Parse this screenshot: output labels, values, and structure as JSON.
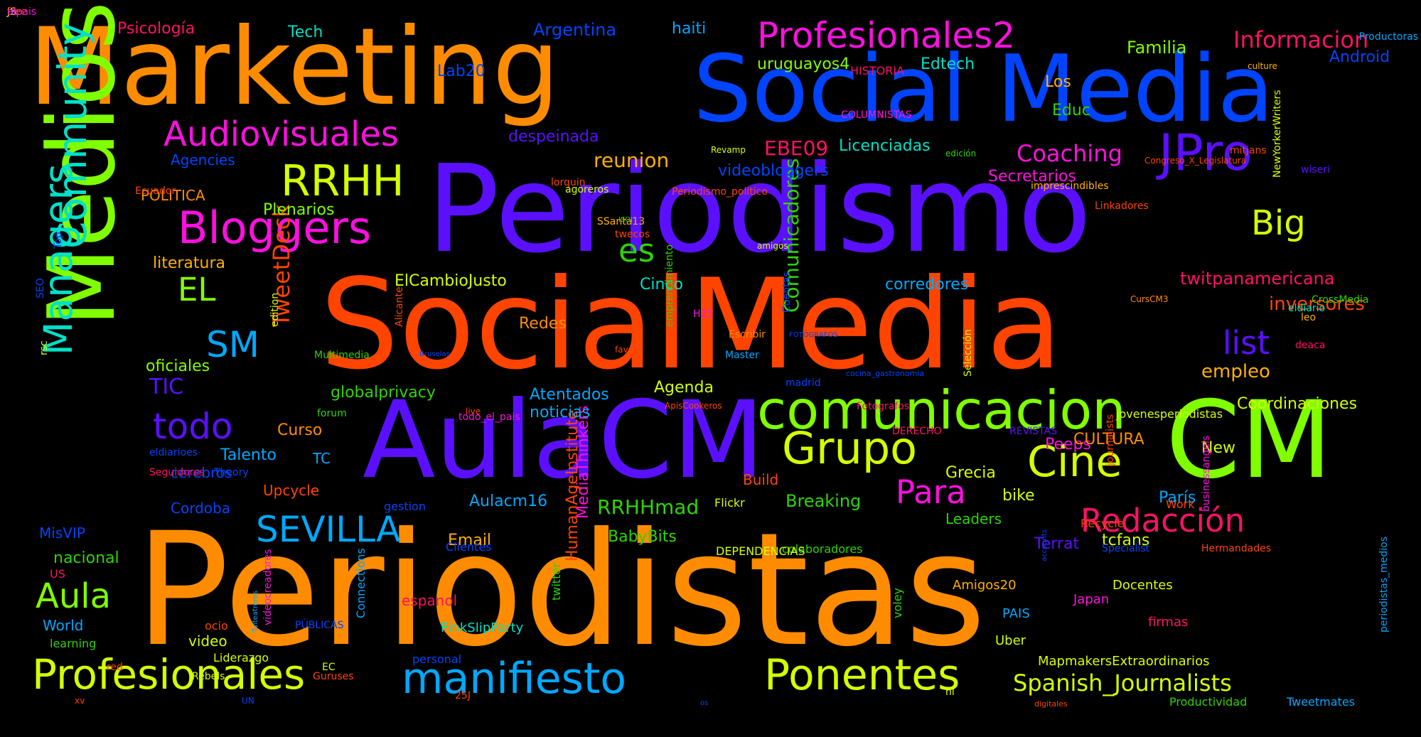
{
  "palette": [
    "#ff8c00",
    "#0044ff",
    "#5a10ff",
    "#ff4400",
    "#80ff00",
    "#ff10e0",
    "#d4ff00",
    "#00e0c8",
    "#ff1068",
    "#00a8ff",
    "#ffb000",
    "#2ed400"
  ],
  "words": [
    {
      "t": "Periodistas",
      "c": 0,
      "s": 10,
      "r": 0
    },
    {
      "t": "SocialMedia",
      "c": 3,
      "s": 9,
      "r": 0
    },
    {
      "t": "Periodismo",
      "c": 2,
      "s": 9,
      "r": 0
    },
    {
      "t": "Marketing",
      "c": 0,
      "s": 8,
      "r": 0
    },
    {
      "t": "Social Media",
      "c": 1,
      "s": 8,
      "r": 0
    },
    {
      "t": "Medios",
      "c": 4,
      "s": 8,
      "r": 1
    },
    {
      "t": "AulaCM",
      "c": 2,
      "s": 8,
      "r": 0
    },
    {
      "t": "CM",
      "c": 4,
      "s": 8,
      "r": 0
    },
    {
      "t": "comunicacion",
      "c": 4,
      "s": 6,
      "r": 0
    },
    {
      "t": "Community",
      "c": 7,
      "s": 5,
      "r": 1
    },
    {
      "t": "Managers",
      "c": 7,
      "s": 5,
      "r": 1
    },
    {
      "t": "JPro",
      "c": 2,
      "s": 5,
      "r": 0
    },
    {
      "t": "Grupo",
      "c": 6,
      "s": 5,
      "r": 0
    },
    {
      "t": "Cine",
      "c": 6,
      "s": 5,
      "r": 0
    },
    {
      "t": "Ponentes",
      "c": 6,
      "s": 5,
      "r": 0
    },
    {
      "t": "manifiesto",
      "c": 9,
      "s": 5,
      "r": 0
    },
    {
      "t": "Profesionales",
      "c": 6,
      "s": 5,
      "r": 0
    },
    {
      "t": "Bloggers",
      "c": 5,
      "s": 5,
      "r": 0
    },
    {
      "t": "RRHH",
      "c": 6,
      "s": 5,
      "r": 0
    },
    {
      "t": "Audiovisuales",
      "c": 5,
      "s": 4,
      "r": 0
    },
    {
      "t": "Profesionales2",
      "c": 5,
      "s": 4,
      "r": 0
    },
    {
      "t": "SEVILLA",
      "c": 9,
      "s": 4,
      "r": 0
    },
    {
      "t": "Redacción",
      "c": 8,
      "s": 4,
      "r": 0
    },
    {
      "t": "todo",
      "c": 2,
      "s": 4,
      "r": 0
    },
    {
      "t": "Aula",
      "c": 4,
      "s": 4,
      "r": 0
    },
    {
      "t": "Big",
      "c": 6,
      "s": 4,
      "r": 0
    },
    {
      "t": "Para",
      "c": 5,
      "s": 4,
      "r": 0
    },
    {
      "t": "es",
      "c": 11,
      "s": 4,
      "r": 0
    },
    {
      "t": "EL",
      "c": 4,
      "s": 4,
      "r": 0
    },
    {
      "t": "SM",
      "c": 9,
      "s": 4,
      "r": 0
    },
    {
      "t": "list",
      "c": 2,
      "s": 4,
      "r": 0
    },
    {
      "t": "TweetDeck",
      "c": 3,
      "s": 3,
      "r": 1
    },
    {
      "t": "Informacion",
      "c": 8,
      "s": 3,
      "r": 0
    },
    {
      "t": "Coaching",
      "c": 5,
      "s": 3,
      "r": 0
    },
    {
      "t": "Spanish_Journalists",
      "c": 6,
      "s": 3,
      "r": 0
    },
    {
      "t": "Comunicadores",
      "c": 11,
      "s": 3,
      "r": 1
    },
    {
      "t": "MediaThinkers",
      "c": 5,
      "s": 3,
      "r": 1
    },
    {
      "t": "HumanAgeInstitute",
      "c": 3,
      "s": 3,
      "r": 1
    },
    {
      "t": "RRHHmad",
      "c": 11,
      "s": 3,
      "r": 0
    },
    {
      "t": "EBE09",
      "c": 8,
      "s": 3,
      "r": 0
    },
    {
      "t": "TIC",
      "c": 2,
      "s": 3,
      "r": 0
    },
    {
      "t": "Breaking",
      "c": 11,
      "s": 2,
      "r": 0
    },
    {
      "t": "reunion",
      "c": 10,
      "s": 3,
      "r": 0
    },
    {
      "t": "empleo",
      "c": 10,
      "s": 3,
      "r": 0
    },
    {
      "t": "inversores",
      "c": 3,
      "s": 3,
      "r": 0
    },
    {
      "t": "twitpanamericana",
      "c": 8,
      "s": 2,
      "r": 0
    },
    {
      "t": "Licenciadas",
      "c": 7,
      "s": 2,
      "r": 0
    },
    {
      "t": "despeinada",
      "c": 2,
      "s": 2,
      "r": 0
    },
    {
      "t": "videobloggers",
      "c": 1,
      "s": 2,
      "r": 0
    },
    {
      "t": "Secretarios",
      "c": 5,
      "s": 2,
      "r": 0
    },
    {
      "t": "Familia",
      "c": 4,
      "s": 2,
      "r": 0
    },
    {
      "t": "uruguayos4",
      "c": 4,
      "s": 2,
      "r": 0
    },
    {
      "t": "Edtech",
      "c": 7,
      "s": 2,
      "r": 0
    },
    {
      "t": "Los",
      "c": 10,
      "s": 2,
      "r": 0
    },
    {
      "t": "Educ",
      "c": 11,
      "s": 2,
      "r": 0
    },
    {
      "t": "Argentina",
      "c": 1,
      "s": 2,
      "r": 0
    },
    {
      "t": "haiti",
      "c": 9,
      "s": 2,
      "r": 0
    },
    {
      "t": "Tech",
      "c": 7,
      "s": 2,
      "r": 0
    },
    {
      "t": "Psicología",
      "c": 8,
      "s": 2,
      "r": 0
    },
    {
      "t": "Android",
      "c": 1,
      "s": 2,
      "r": 0
    },
    {
      "t": "Lab20",
      "c": 1,
      "s": 2,
      "r": 0
    },
    {
      "t": "Agencies",
      "c": 1,
      "s": 2,
      "r": 0
    },
    {
      "t": "POLITICA",
      "c": 0,
      "s": 2,
      "r": 0
    },
    {
      "t": "Plenarios",
      "c": 4,
      "s": 2,
      "r": 0
    },
    {
      "t": "literatura",
      "c": 10,
      "s": 2,
      "r": 0
    },
    {
      "t": "ElCambioJusto",
      "c": 6,
      "s": 2,
      "r": 0
    },
    {
      "t": "Cinco",
      "c": 7,
      "s": 2,
      "r": 0
    },
    {
      "t": "corredores",
      "c": 9,
      "s": 2,
      "r": 0
    },
    {
      "t": "Redes",
      "c": 0,
      "s": 2,
      "r": 0
    },
    {
      "t": "oficiales",
      "c": 4,
      "s": 2,
      "r": 0
    },
    {
      "t": "globalprivacy",
      "c": 11,
      "s": 2,
      "r": 0
    },
    {
      "t": "Atentados",
      "c": 9,
      "s": 2,
      "r": 0
    },
    {
      "t": "noticias",
      "c": 9,
      "s": 2,
      "r": 0
    },
    {
      "t": "Agenda",
      "c": 6,
      "s": 2,
      "r": 0
    },
    {
      "t": "Coordinaciones",
      "c": 6,
      "s": 2,
      "r": 0
    },
    {
      "t": "Curso",
      "c": 0,
      "s": 2,
      "r": 0
    },
    {
      "t": "Talento",
      "c": 9,
      "s": 2,
      "r": 0
    },
    {
      "t": "TC",
      "c": 9,
      "s": 2,
      "r": 0
    },
    {
      "t": "cerebros",
      "c": 1,
      "s": 2,
      "r": 0
    },
    {
      "t": "Upcycle",
      "c": 3,
      "s": 2,
      "r": 0
    },
    {
      "t": "Cordoba",
      "c": 1,
      "s": 2,
      "r": 0
    },
    {
      "t": "Build",
      "c": 3,
      "s": 2,
      "r": 0
    },
    {
      "t": "Peeps",
      "c": 5,
      "s": 2,
      "r": 0
    },
    {
      "t": "Grecia",
      "c": 6,
      "s": 2,
      "r": 0
    },
    {
      "t": "CULTURA",
      "c": 0,
      "s": 2,
      "r": 0
    },
    {
      "t": "bike",
      "c": 6,
      "s": 2,
      "r": 0
    },
    {
      "t": "París",
      "c": 9,
      "s": 2,
      "r": 0
    },
    {
      "t": "New",
      "c": 6,
      "s": 2,
      "r": 0
    },
    {
      "t": "Leaders",
      "c": 11,
      "s": 2,
      "r": 0
    },
    {
      "t": "tcfans",
      "c": 6,
      "s": 2,
      "r": 0
    },
    {
      "t": "Terrat",
      "c": 2,
      "s": 2,
      "r": 0
    },
    {
      "t": "BabyBits",
      "c": 11,
      "s": 2,
      "r": 0
    },
    {
      "t": "Email",
      "c": 10,
      "s": 2,
      "r": 0
    },
    {
      "t": "Aulacm16",
      "c": 9,
      "s": 2,
      "r": 0
    },
    {
      "t": "MisVIP",
      "c": 1,
      "s": 2,
      "r": 0
    },
    {
      "t": "nacional",
      "c": 11,
      "s": 2,
      "r": 0
    },
    {
      "t": "World",
      "c": 9,
      "s": 2,
      "r": 0
    },
    {
      "t": "video",
      "c": 6,
      "s": 2,
      "r": 0
    },
    {
      "t": "espanol",
      "c": 8,
      "s": 2,
      "r": 0
    },
    {
      "t": "Docentes",
      "c": 6,
      "s": 1,
      "r": 0
    },
    {
      "t": "Amigos20",
      "c": 10,
      "s": 1,
      "r": 0
    },
    {
      "t": "Japan",
      "c": 5,
      "s": 1,
      "r": 0
    },
    {
      "t": "PAIS",
      "c": 9,
      "s": 1,
      "r": 0
    },
    {
      "t": "firmas",
      "c": 8,
      "s": 1,
      "r": 0
    },
    {
      "t": "Uber",
      "c": 6,
      "s": 1,
      "r": 0
    },
    {
      "t": "MapmakersExtraordinarios",
      "c": 6,
      "s": 1,
      "r": 0
    },
    {
      "t": "Productividad",
      "c": 11,
      "s": 1,
      "r": 0
    },
    {
      "t": "Tweetmates",
      "c": 9,
      "s": 1,
      "r": 0
    },
    {
      "t": "PinkSlipParty",
      "c": 7,
      "s": 1,
      "r": 0
    },
    {
      "t": "Liderazgo",
      "c": 6,
      "s": 1,
      "r": 0
    },
    {
      "t": "learning",
      "c": 11,
      "s": 1,
      "r": 0
    },
    {
      "t": "personal",
      "c": 1,
      "s": 1,
      "r": 0
    },
    {
      "t": "ocio",
      "c": 3,
      "s": 1,
      "r": 0
    },
    {
      "t": "PÚBLICAS",
      "c": 1,
      "s": 1,
      "r": 0
    },
    {
      "t": "EC",
      "c": 6,
      "s": 1,
      "r": 0
    },
    {
      "t": "red",
      "c": 3,
      "s": 1,
      "r": 0
    },
    {
      "t": "US",
      "c": 8,
      "s": 1,
      "r": 0
    },
    {
      "t": "Clientes",
      "c": 1,
      "s": 1,
      "r": 0
    },
    {
      "t": "colaboradores",
      "c": 11,
      "s": 1,
      "r": 0
    },
    {
      "t": "Specialist",
      "c": 1,
      "s": 1,
      "r": 0
    },
    {
      "t": "Hermandades",
      "c": 3,
      "s": 1,
      "r": 0
    },
    {
      "t": "DEPENDENCIAS",
      "c": 6,
      "s": 1,
      "r": 0
    },
    {
      "t": "Recycle",
      "c": 3,
      "s": 1,
      "r": 0
    },
    {
      "t": "Work",
      "c": 3,
      "s": 1,
      "r": 0
    },
    {
      "t": "Flickr",
      "c": 6,
      "s": 1,
      "r": 0
    },
    {
      "t": "gestion",
      "c": 1,
      "s": 1,
      "r": 0
    },
    {
      "t": "Seguidores",
      "c": 8,
      "s": 1,
      "r": 0
    },
    {
      "t": "Theory",
      "c": 1,
      "s": 1,
      "r": 0
    },
    {
      "t": "eldiarioes",
      "c": 1,
      "s": 1,
      "r": 0
    },
    {
      "t": "DERECHO",
      "c": 8,
      "s": 1,
      "r": 0
    },
    {
      "t": "REVISTAS",
      "c": 2,
      "s": 1,
      "r": 0
    },
    {
      "t": "todo_el_pais",
      "c": 5,
      "s": 1,
      "r": 0
    },
    {
      "t": "forum",
      "c": 11,
      "s": 1,
      "r": 0
    },
    {
      "t": "live",
      "c": 3,
      "s": 1,
      "r": 0
    },
    {
      "t": "madrid",
      "c": 1,
      "s": 1,
      "r": 0
    },
    {
      "t": "Multimedia",
      "c": 11,
      "s": 1,
      "r": 0
    },
    {
      "t": "Master",
      "c": 9,
      "s": 1,
      "r": 0
    },
    {
      "t": "ApisCookeros",
      "c": 3,
      "s": 1,
      "r": 0
    },
    {
      "t": "Fotografos",
      "c": 8,
      "s": 1,
      "r": 0
    },
    {
      "t": "Escribir",
      "c": 0,
      "s": 1,
      "r": 0
    },
    {
      "t": "favs",
      "c": 3,
      "s": 1,
      "r": 0
    },
    {
      "t": "eldiario",
      "c": 7,
      "s": 1,
      "r": 0
    },
    {
      "t": "leo",
      "c": 10,
      "s": 1,
      "r": 0
    },
    {
      "t": "deaca",
      "c": 8,
      "s": 1,
      "r": 0
    },
    {
      "t": "CrossMedia",
      "c": 11,
      "s": 1,
      "r": 0
    },
    {
      "t": "amigos",
      "c": 6,
      "s": 1,
      "r": 0
    },
    {
      "t": "H25",
      "c": 5,
      "s": 1,
      "r": 0
    },
    {
      "t": "SSanta13",
      "c": 10,
      "s": 1,
      "r": 0
    },
    {
      "t": "twecos",
      "c": 3,
      "s": 1,
      "r": 0
    },
    {
      "t": "ISOJ",
      "c": 11,
      "s": 1,
      "r": 0
    },
    {
      "t": "CursCM3",
      "c": 0,
      "s": 1,
      "r": 0
    },
    {
      "t": "Linkadores",
      "c": 3,
      "s": 1,
      "r": 0
    },
    {
      "t": "lorquin",
      "c": 3,
      "s": 1,
      "r": 0
    },
    {
      "t": "Ecuador",
      "c": 3,
      "s": 1,
      "r": 0
    },
    {
      "t": "Periodismo_politico",
      "c": 3,
      "s": 1,
      "r": 0
    },
    {
      "t": "imprescindibles",
      "c": 10,
      "s": 1,
      "r": 0
    },
    {
      "t": "edición",
      "c": 11,
      "s": 1,
      "r": 0
    },
    {
      "t": "wiseri",
      "c": 2,
      "s": 1,
      "r": 0
    },
    {
      "t": "HISTORIA",
      "c": 8,
      "s": 1,
      "r": 0
    },
    {
      "t": "COLUMNISTAS",
      "c": 5,
      "s": 1,
      "r": 0
    },
    {
      "t": "agoreros",
      "c": 6,
      "s": 1,
      "r": 0
    },
    {
      "t": "Productoras",
      "c": 9,
      "s": 1,
      "r": 0
    },
    {
      "t": "culture",
      "c": 10,
      "s": 1,
      "r": 0
    },
    {
      "t": "mitjans",
      "c": 3,
      "s": 1,
      "r": 0
    },
    {
      "t": "Revamp",
      "c": 6,
      "s": 0,
      "r": 0
    },
    {
      "t": "jovenesperiodistas",
      "c": 6,
      "s": 0,
      "r": 0
    },
    {
      "t": "Rebels",
      "c": 6,
      "s": 0,
      "r": 0
    },
    {
      "t": "Guruses",
      "c": 3,
      "s": 0,
      "r": 0
    },
    {
      "t": "25J",
      "c": 3,
      "s": 0,
      "r": 0
    },
    {
      "t": "hl",
      "c": 6,
      "s": 0,
      "r": 0
    },
    {
      "t": "xv",
      "c": 3,
      "s": 0,
      "r": 0
    },
    {
      "t": "UN",
      "c": 1,
      "s": 0,
      "r": 0
    },
    {
      "t": "os",
      "c": 1,
      "s": 0,
      "r": 0
    },
    {
      "t": "digitales",
      "c": 3,
      "s": 0,
      "r": 0
    },
    {
      "t": "Congreso_X_Legislatura",
      "c": 3,
      "s": 0,
      "r": 0
    },
    {
      "t": "cocina_gastronomia",
      "c": 1,
      "s": 0,
      "r": 0
    },
    {
      "t": "FOTÓGRAFOS",
      "c": 1,
      "s": 0,
      "r": 0
    },
    {
      "t": "Bruselas",
      "c": 1,
      "s": 0,
      "r": 0
    },
    {
      "t": "Tuiteatreros",
      "c": 9,
      "s": 2,
      "r": 1
    },
    {
      "t": "videocreadores",
      "c": 5,
      "s": 2,
      "r": 1
    },
    {
      "t": "particulares",
      "c": 0,
      "s": 2,
      "r": 1
    },
    {
      "t": "Connections",
      "c": 9,
      "s": 2,
      "r": 1
    },
    {
      "t": "twitter",
      "c": 11,
      "s": 2,
      "r": 1
    },
    {
      "t": "voley",
      "c": 11,
      "s": 2,
      "r": 1
    },
    {
      "t": "accounts",
      "c": 1,
      "s": 2,
      "r": 1
    },
    {
      "t": "tn",
      "c": 9,
      "s": 2,
      "r": 0
    },
    {
      "t": "JS",
      "c": 6,
      "s": 2,
      "r": 0
    },
    {
      "t": "journalists",
      "c": 3,
      "s": 1,
      "r": 1
    },
    {
      "t": "NewYorkerWriters",
      "c": 6,
      "s": 1,
      "r": 1
    },
    {
      "t": "Selección",
      "c": 6,
      "s": 1,
      "r": 1
    },
    {
      "t": "Alicante",
      "c": 3,
      "s": 1,
      "r": 1
    },
    {
      "t": "emprendimiento",
      "c": 11,
      "s": 1,
      "r": 1
    },
    {
      "t": "businessangels",
      "c": 5,
      "s": 1,
      "r": 1
    },
    {
      "t": "periodistas_medios",
      "c": 9,
      "s": 1,
      "r": 1
    },
    {
      "t": "SEO",
      "c": 1,
      "s": 1,
      "r": 1
    },
    {
      "t": "Top",
      "c": 1,
      "s": 1,
      "r": 1
    },
    {
      "t": "rsc",
      "c": 6,
      "s": 1,
      "r": 1
    },
    {
      "t": "free",
      "c": 3,
      "s": 1,
      "r": 0
    },
    {
      "t": "elpais",
      "c": 5,
      "s": 1,
      "r": 0
    },
    {
      "t": "edition",
      "c": 6,
      "s": 0,
      "r": 1
    },
    {
      "t": "Cuentas",
      "c": 1,
      "s": 0,
      "r": 1
    }
  ]
}
